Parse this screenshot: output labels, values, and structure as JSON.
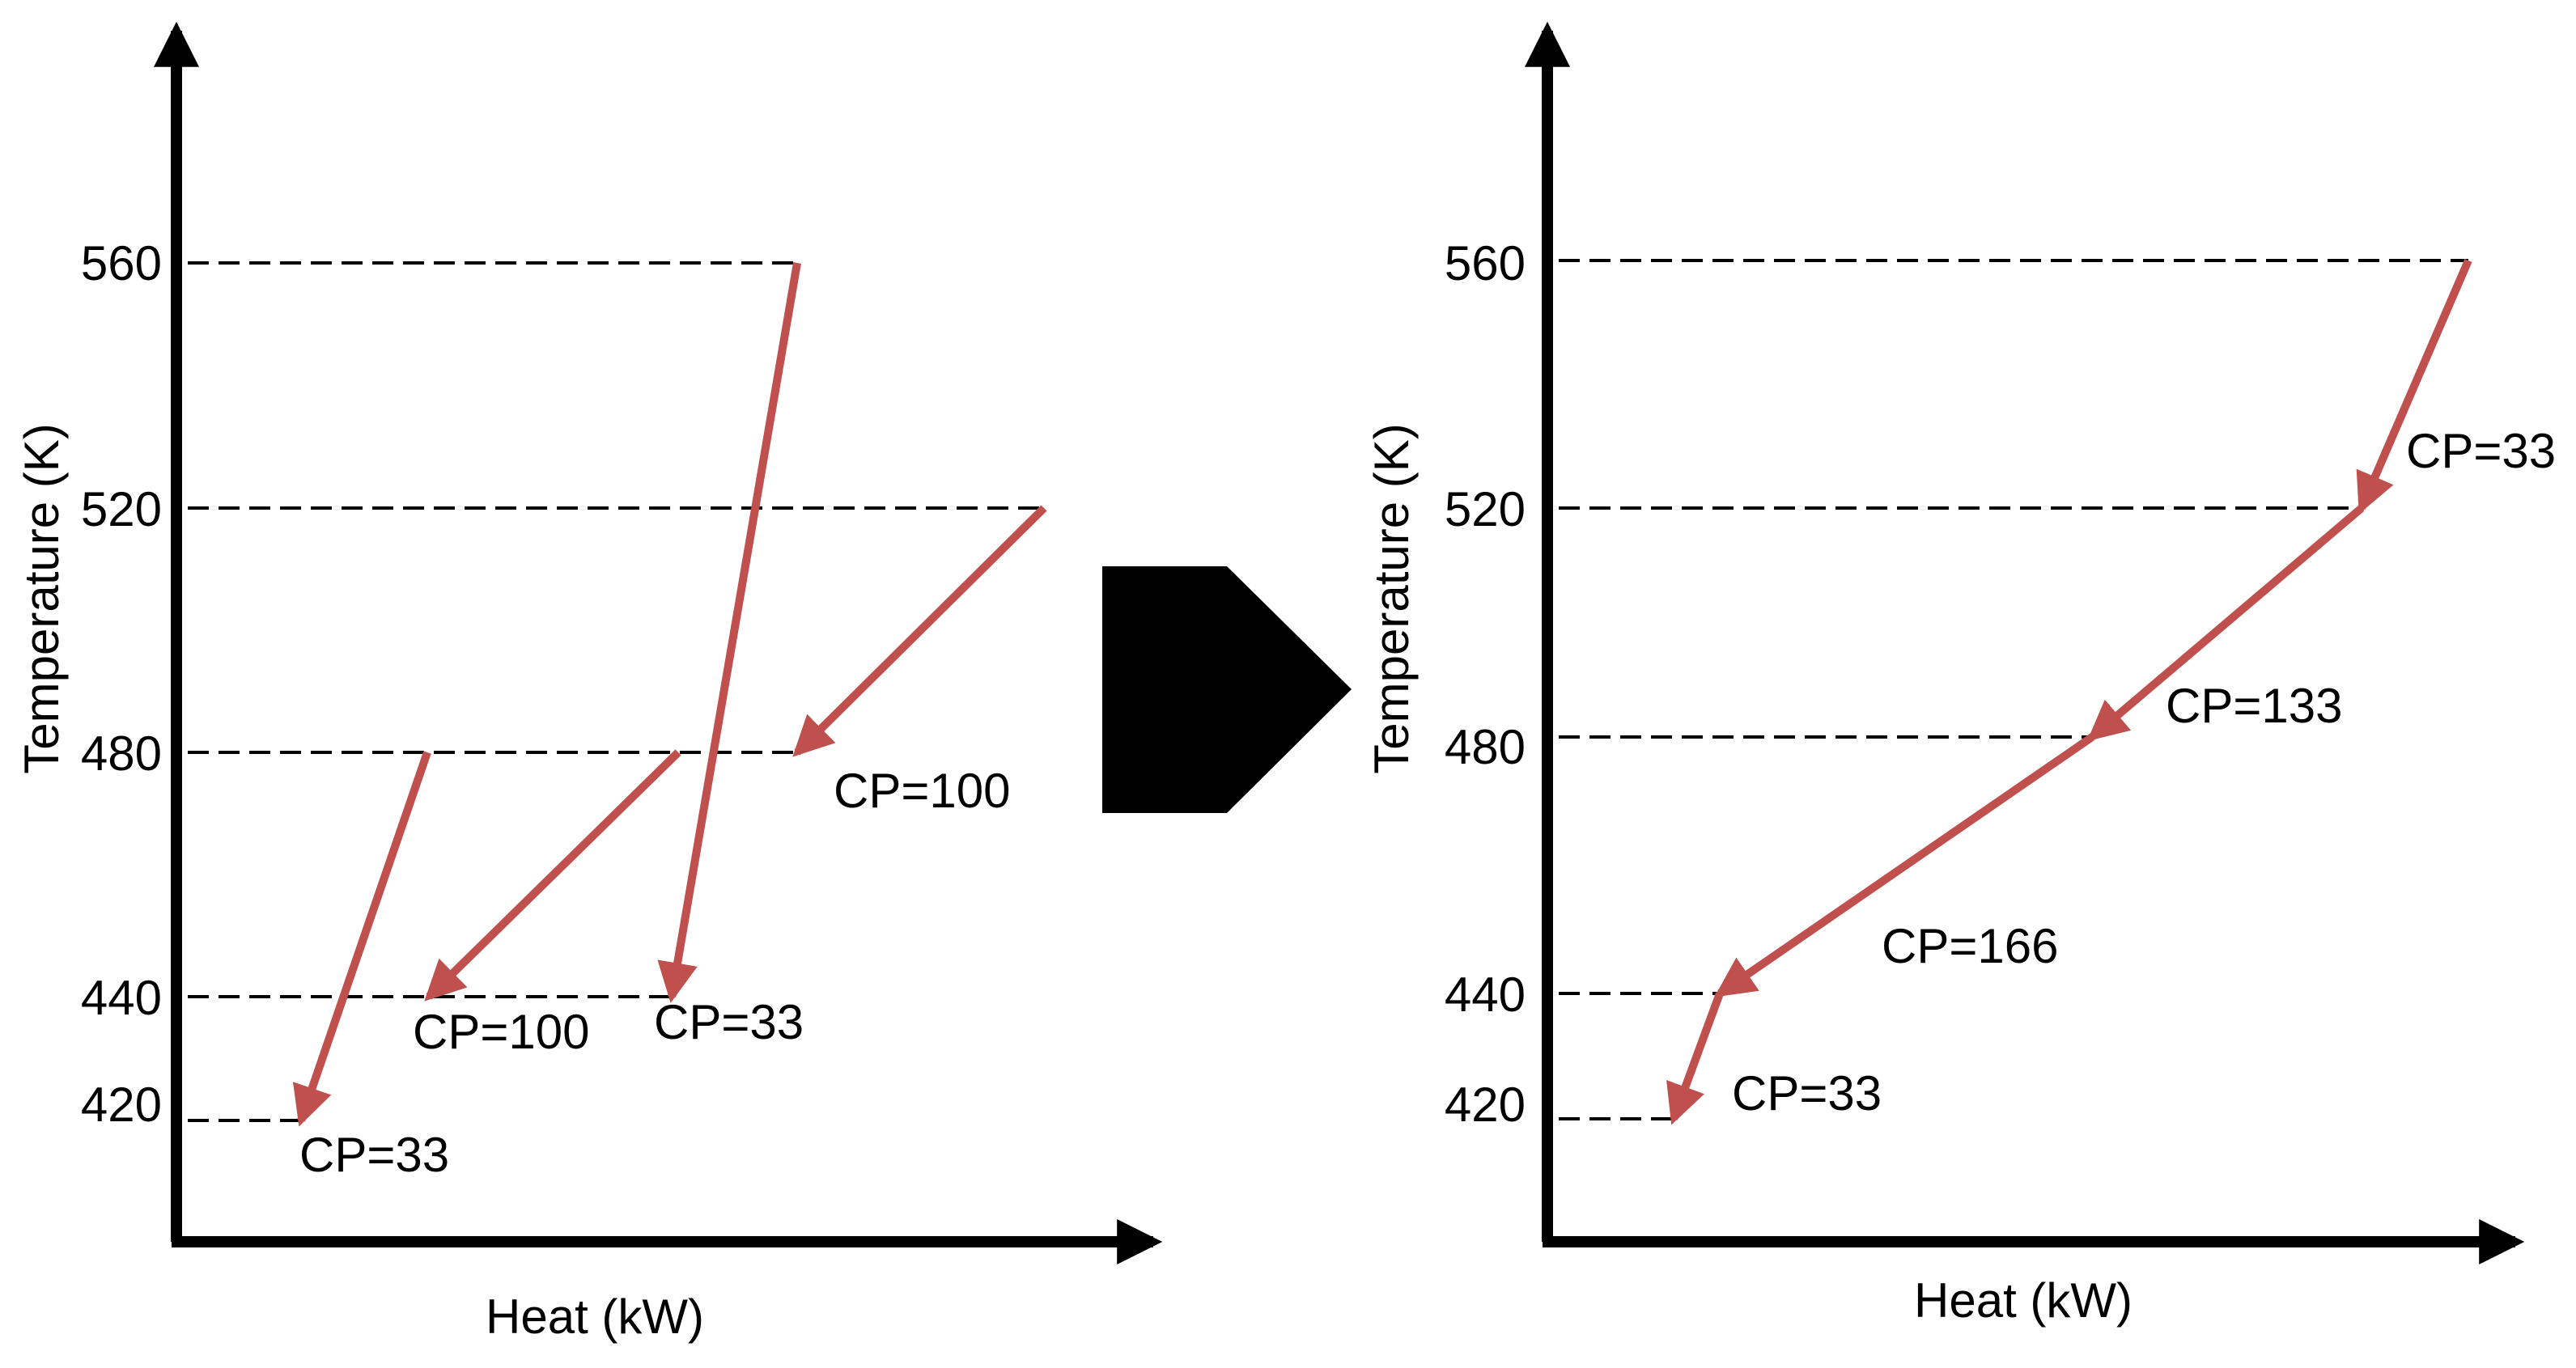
{
  "colors": {
    "stream": "#c0504d",
    "axis": "#000000",
    "guide": "#000000",
    "arrow_block": "#000000"
  },
  "icons": {
    "transition_arrow": "pentagon-right-arrow-icon"
  },
  "left_panel": {
    "ylabel": "Temperature (K)",
    "xlabel": "Heat (kW)",
    "ticks": [
      "560",
      "520",
      "480",
      "440",
      "420"
    ],
    "streams": [
      {
        "cp": "CP=100"
      },
      {
        "cp": "CP=100"
      },
      {
        "cp": "CP=33"
      },
      {
        "cp": "CP=33"
      }
    ]
  },
  "right_panel": {
    "ylabel": "Temperature (K)",
    "xlabel": "Heat (kW)",
    "ticks": [
      "560",
      "520",
      "480",
      "440",
      "420"
    ],
    "segments": [
      {
        "cp": "CP=33"
      },
      {
        "cp": "CP=133"
      },
      {
        "cp": "CP=166"
      },
      {
        "cp": "CP=33"
      }
    ]
  }
}
